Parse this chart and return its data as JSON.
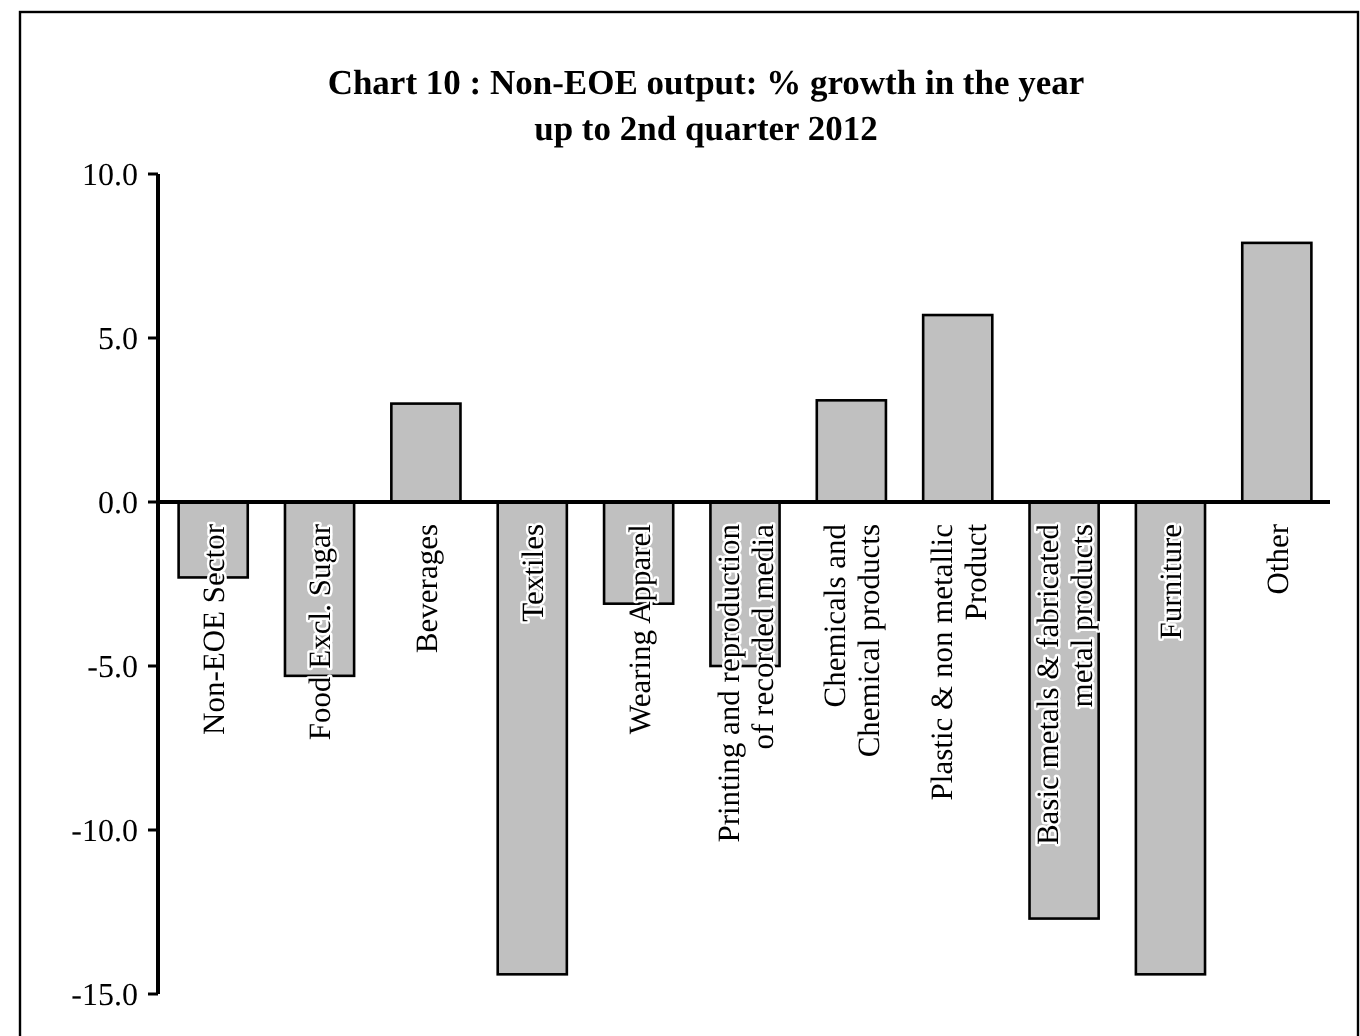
{
  "chart_data": {
    "type": "bar",
    "title": "Chart 10 : Non-EOE output:  % growth in the year\nup to 2nd quarter 2012",
    "categories": [
      "Non-EOE Sector",
      "Food Excl. Sugar",
      "Beverages",
      "Textiles",
      "Wearing Apparel",
      "Printing and reproduction\nof recorded media",
      "Chemicals  and\nChemical products",
      "Plastic & non metallic\nProduct",
      "Basic metals & fabricated\nmetal products",
      "Furniture",
      "Other"
    ],
    "values": [
      -2.3,
      -5.3,
      3.0,
      -14.4,
      -3.1,
      -5.0,
      3.1,
      5.7,
      -12.7,
      -14.4,
      7.9
    ],
    "color": "#c0c0c0",
    "ylim": [
      -15,
      10
    ],
    "yticks": [
      {
        "value": -15,
        "label": "-15.0"
      },
      {
        "value": -10,
        "label": "-10.0"
      },
      {
        "value": -5,
        "label": "-5.0"
      },
      {
        "value": 0,
        "label": "0.0"
      },
      {
        "value": 5,
        "label": "5.0"
      },
      {
        "value": 10,
        "label": "10.0"
      }
    ]
  }
}
